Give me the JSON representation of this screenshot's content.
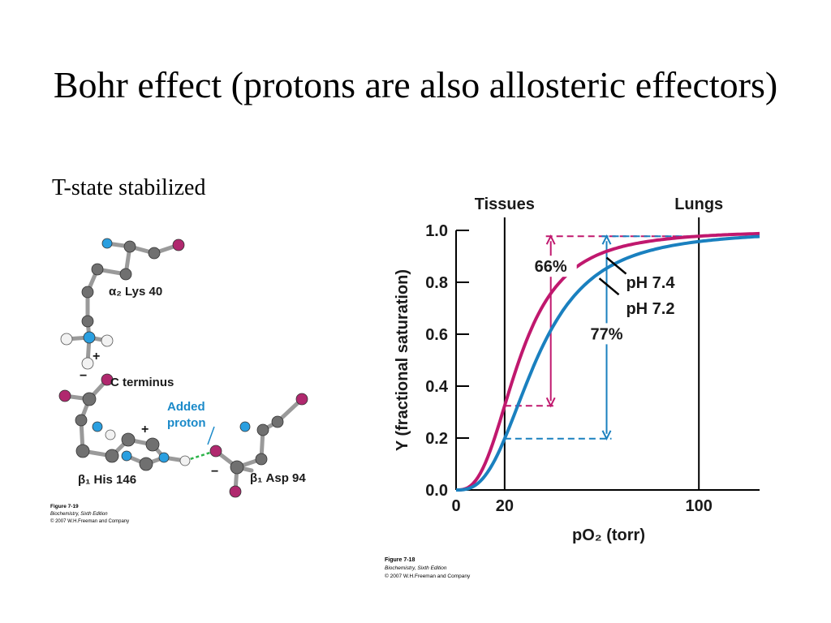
{
  "slide": {
    "title": "Bohr effect (protons are also allosteric effectors)",
    "subtitle": "T-state stabilized"
  },
  "structure_figure": {
    "labels": {
      "lys": "α₂ Lys 40",
      "c_terminus": "C terminus",
      "added_proton_1": "Added",
      "added_proton_2": "proton",
      "his": "β₁ His 146",
      "asp": "β₁ Asp 94",
      "plus1": "+",
      "plus2": "+",
      "minus1": "−",
      "minus2": "−"
    },
    "credit": {
      "figure": "Figure 7-19",
      "book": "Biochemistry, Sixth Edition",
      "copyright": "© 2007 W.H.Freeman and Company"
    },
    "colors": {
      "carbon": "#707070",
      "nitrogen": "#2a9fe0",
      "oxygen": "#b0286e",
      "hydrogen": "#f2f2f2",
      "hbond": "#2db34a"
    }
  },
  "chart_data": {
    "type": "line",
    "xlabel": "pO₂ (torr)",
    "ylabel": "Y (fractional saturation)",
    "xlim": [
      0,
      125
    ],
    "ylim": [
      0,
      1.0
    ],
    "x_ticks": [
      "0",
      "20",
      "100"
    ],
    "y_ticks": [
      "0.0",
      "0.2",
      "0.4",
      "0.6",
      "0.8",
      "1.0"
    ],
    "vertical_markers": [
      {
        "label": "Tissues",
        "x": 20
      },
      {
        "label": "Lungs",
        "x": 100
      }
    ],
    "series": [
      {
        "name": "pH 7.4",
        "color": "#c0186e",
        "p50": 26,
        "n": 2.8
      },
      {
        "name": "pH 7.2",
        "color": "#1a80bf",
        "p50": 33,
        "n": 2.8
      }
    ],
    "annotations": [
      {
        "text": "66%",
        "color": "#c0186e"
      },
      {
        "text": "77%",
        "color": "#1a80bf"
      }
    ],
    "credit": {
      "figure": "Figure 7-18",
      "book": "Biochemistry, Sixth Edition",
      "copyright": "© 2007 W.H.Freeman and Company"
    }
  }
}
